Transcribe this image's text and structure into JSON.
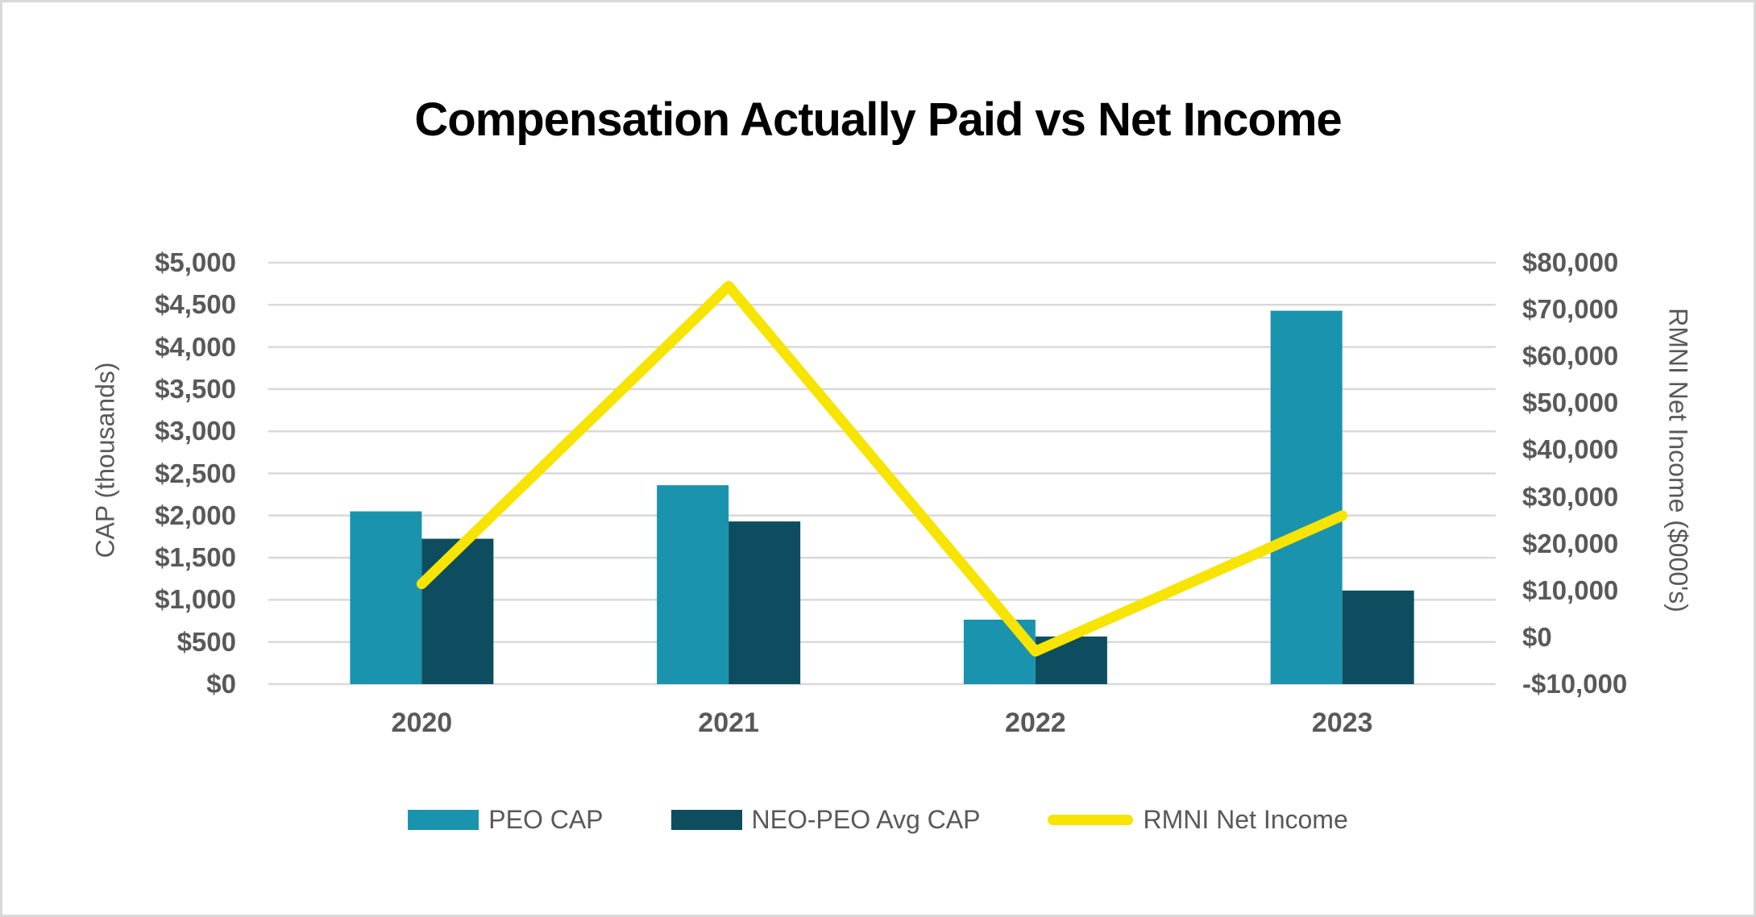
{
  "chart_data": {
    "type": "combo bar+line",
    "title": "Compensation Actually Paid vs Net Income",
    "categories": [
      "2020",
      "2021",
      "2022",
      "2023"
    ],
    "bar_series": [
      {
        "name": "PEO CAP",
        "color": "#1A93AE",
        "axis": "left",
        "values": [
          2050,
          2360,
          765,
          4430
        ]
      },
      {
        "name": "NEO-PEO Avg CAP",
        "color": "#0E4D5F",
        "axis": "left",
        "values": [
          1725,
          1930,
          565,
          1110
        ]
      }
    ],
    "line_series": [
      {
        "name": "RMNI Net Income",
        "color": "#F7E400",
        "axis": "right",
        "values": [
          11400,
          75000,
          -3000,
          26000
        ]
      }
    ],
    "left_axis": {
      "title": "CAP (thousands)",
      "min": 0,
      "max": 5000,
      "step": 500,
      "tick_labels": [
        "$0",
        "$500",
        "$1,000",
        "$1,500",
        "$2,000",
        "$2,500",
        "$3,000",
        "$3,500",
        "$4,000",
        "$4,500",
        "$5,000"
      ]
    },
    "right_axis": {
      "title": "RMNI Net Income ($000's)",
      "min": -10000,
      "max": 80000,
      "step": 10000,
      "tick_labels": [
        "-$10,000",
        "$0",
        "$10,000",
        "$20,000",
        "$30,000",
        "$40,000",
        "$50,000",
        "$60,000",
        "$70,000",
        "$80,000"
      ]
    },
    "legend": [
      {
        "label": "PEO CAP",
        "swatch": "bar",
        "color": "#1A93AE"
      },
      {
        "label": "NEO-PEO Avg CAP",
        "swatch": "bar",
        "color": "#0E4D5F"
      },
      {
        "label": "RMNI Net Income",
        "swatch": "line",
        "color": "#F7E400"
      }
    ],
    "grid": {
      "color": "#D9D9D9",
      "show": true
    },
    "text_color": "#595959",
    "legend_position": "bottom"
  }
}
